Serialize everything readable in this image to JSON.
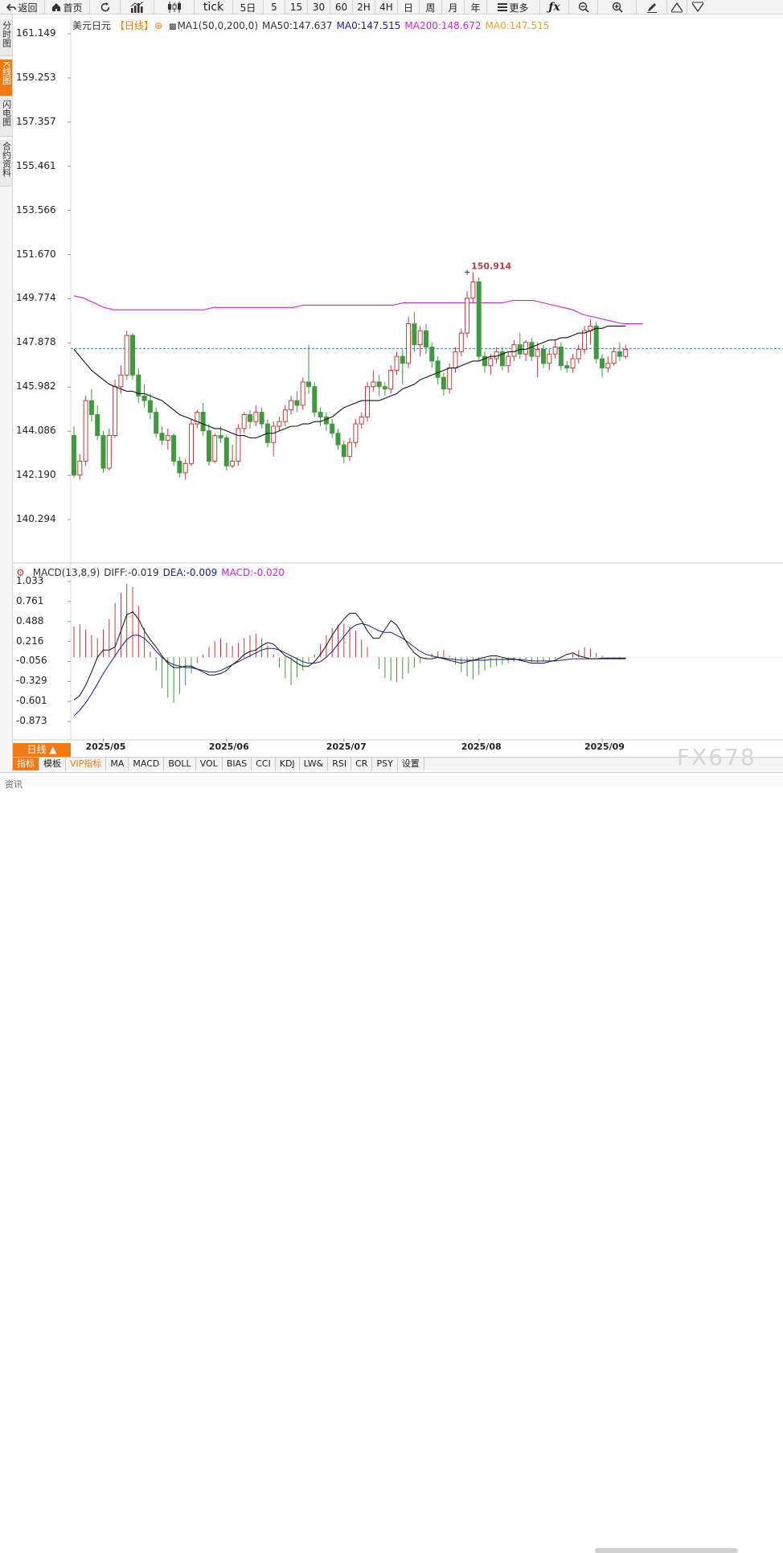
{
  "toolbar": {
    "back": "返回",
    "home": "首页",
    "tick": "tick",
    "periods": [
      "5日",
      "5",
      "15",
      "30",
      "60",
      "2H",
      "4H",
      "日",
      "周",
      "月",
      "年"
    ],
    "more": "更多"
  },
  "left_tabs": [
    {
      "label": "分时图",
      "active": false
    },
    {
      "label": "K线图",
      "active": true
    },
    {
      "label": "闪电图",
      "active": false
    },
    {
      "label": "合约资料",
      "active": false
    }
  ],
  "legend_main": {
    "symbol": "美元日元",
    "period": "【日线】",
    "indicator": "MA1(50,0,200,0)",
    "ma50": "MA50:147.637",
    "ma0a": "MA0:147.515",
    "ma200": "MA200:148.672",
    "ma0b": "MA0:147.515"
  },
  "legend_macd": {
    "name": "MACD(13,8,9)",
    "diff": "DIFF:-0.019",
    "dea": "DEA:-0.009",
    "macd": "MACD:-0.020"
  },
  "colors": {
    "up": "#c23b3b",
    "down": "#3f9a3f",
    "ma200": "#d622d6",
    "ma50": "#111111",
    "current": "#2a7fbf",
    "accent": "#f07a16",
    "dea": "#1a1a8a"
  },
  "chart_data": {
    "type": "candlestick",
    "y_ticks": [
      "161.149",
      "159.253",
      "157.357",
      "155.461",
      "153.566",
      "151.670",
      "149.774",
      "147.878",
      "145.982",
      "144.086",
      "142.190",
      "140.294"
    ],
    "ylim": [
      140.294,
      161.149
    ],
    "macd_ticks": [
      "1.033",
      "0.761",
      "0.488",
      "0.216",
      "-0.056",
      "-0.329",
      "-0.601",
      "-0.873"
    ],
    "macd_ylim": [
      -0.873,
      1.033
    ],
    "x_labels": [
      {
        "label": "2025/05",
        "index": 5
      },
      {
        "label": "2025/06",
        "index": 26
      },
      {
        "label": "2025/07",
        "index": 46
      },
      {
        "label": "2025/08",
        "index": 69
      },
      {
        "label": "2025/09",
        "index": 90
      }
    ],
    "high_marker": {
      "label": "150.914",
      "value": 150.914,
      "index": 67
    },
    "current_price": 147.637,
    "candles": [
      [
        143.9,
        142.2,
        144.3,
        142.1
      ],
      [
        142.2,
        142.8,
        143.1,
        142.0
      ],
      [
        142.8,
        145.4,
        145.6,
        142.6
      ],
      [
        145.4,
        144.8,
        145.9,
        144.5
      ],
      [
        144.8,
        143.9,
        145.2,
        143.7
      ],
      [
        143.9,
        142.5,
        144.1,
        142.3
      ],
      [
        142.5,
        143.9,
        144.2,
        142.4
      ],
      [
        143.9,
        146.0,
        146.3,
        143.8
      ],
      [
        146.0,
        146.5,
        146.9,
        145.7
      ],
      [
        146.5,
        148.2,
        148.4,
        146.3
      ],
      [
        148.2,
        146.5,
        148.3,
        146.3
      ],
      [
        146.5,
        145.6,
        146.8,
        145.3
      ],
      [
        145.6,
        145.4,
        146.1,
        145.1
      ],
      [
        145.4,
        144.9,
        145.7,
        144.6
      ],
      [
        144.9,
        144.0,
        145.1,
        143.8
      ],
      [
        144.0,
        143.7,
        144.3,
        143.5
      ],
      [
        143.7,
        143.9,
        144.2,
        143.3
      ],
      [
        143.9,
        142.8,
        144.0,
        142.6
      ],
      [
        142.8,
        142.3,
        143.0,
        142.1
      ],
      [
        142.3,
        142.7,
        142.9,
        142.0
      ],
      [
        142.7,
        144.4,
        144.6,
        142.6
      ],
      [
        144.4,
        144.9,
        145.0,
        144.2
      ],
      [
        144.9,
        144.1,
        145.3,
        143.9
      ],
      [
        144.1,
        142.8,
        144.4,
        142.6
      ],
      [
        142.8,
        143.9,
        144.0,
        142.7
      ],
      [
        143.9,
        143.8,
        144.3,
        143.6
      ],
      [
        143.8,
        142.6,
        143.9,
        142.4
      ],
      [
        142.6,
        142.8,
        143.5,
        142.5
      ],
      [
        142.8,
        144.2,
        144.4,
        142.6
      ],
      [
        144.2,
        144.8,
        144.9,
        144.0
      ],
      [
        144.8,
        144.5,
        145.0,
        144.2
      ],
      [
        144.5,
        144.9,
        145.2,
        144.3
      ],
      [
        144.9,
        144.4,
        145.1,
        144.2
      ],
      [
        144.4,
        143.6,
        144.6,
        143.4
      ],
      [
        143.6,
        144.3,
        144.5,
        143.0
      ],
      [
        144.3,
        144.5,
        144.7,
        144.1
      ],
      [
        144.5,
        145.0,
        145.2,
        144.3
      ],
      [
        145.0,
        145.4,
        145.6,
        144.8
      ],
      [
        145.4,
        145.2,
        145.8,
        144.9
      ],
      [
        145.2,
        146.2,
        146.4,
        145.0
      ],
      [
        146.2,
        146.0,
        147.8,
        145.7
      ],
      [
        146.0,
        144.9,
        146.2,
        144.7
      ],
      [
        144.9,
        144.7,
        145.1,
        144.3
      ],
      [
        144.7,
        144.4,
        144.9,
        144.1
      ],
      [
        144.4,
        144.0,
        144.6,
        143.8
      ],
      [
        144.0,
        143.5,
        144.2,
        143.3
      ],
      [
        143.5,
        143.0,
        143.7,
        142.7
      ],
      [
        143.0,
        143.6,
        143.8,
        142.8
      ],
      [
        143.6,
        144.4,
        144.6,
        143.4
      ],
      [
        144.4,
        144.7,
        144.9,
        144.2
      ],
      [
        144.7,
        146.0,
        146.2,
        144.5
      ],
      [
        146.0,
        146.2,
        146.7,
        145.8
      ],
      [
        146.2,
        146.0,
        146.5,
        145.6
      ],
      [
        146.0,
        145.9,
        146.2,
        145.6
      ],
      [
        145.9,
        146.7,
        146.9,
        145.7
      ],
      [
        146.7,
        147.3,
        147.5,
        146.5
      ],
      [
        147.3,
        147.0,
        147.6,
        146.1
      ],
      [
        147.0,
        148.7,
        149.0,
        146.8
      ],
      [
        148.7,
        147.8,
        149.2,
        147.5
      ],
      [
        147.8,
        148.4,
        148.6,
        147.3
      ],
      [
        148.4,
        147.7,
        148.7,
        147.4
      ],
      [
        147.7,
        147.1,
        147.9,
        146.8
      ],
      [
        147.1,
        146.4,
        147.3,
        146.1
      ],
      [
        146.4,
        145.9,
        146.6,
        145.6
      ],
      [
        145.9,
        146.8,
        147.0,
        145.7
      ],
      [
        146.8,
        147.5,
        147.7,
        146.6
      ],
      [
        147.5,
        148.3,
        148.5,
        147.3
      ],
      [
        148.3,
        149.8,
        150.1,
        148.1
      ],
      [
        149.8,
        150.5,
        150.9,
        149.6
      ],
      [
        150.5,
        147.3,
        150.7,
        147.1
      ],
      [
        147.3,
        146.9,
        147.5,
        146.6
      ],
      [
        146.9,
        147.2,
        147.4,
        146.5
      ],
      [
        147.2,
        147.5,
        147.7,
        147.0
      ],
      [
        147.5,
        146.9,
        147.7,
        146.7
      ],
      [
        146.9,
        147.3,
        147.5,
        146.6
      ],
      [
        147.3,
        147.8,
        148.0,
        147.1
      ],
      [
        147.8,
        147.4,
        148.3,
        147.2
      ],
      [
        147.4,
        147.9,
        148.0,
        147.1
      ],
      [
        147.9,
        147.3,
        148.1,
        147.1
      ],
      [
        147.3,
        147.6,
        147.9,
        146.4
      ],
      [
        147.6,
        147.0,
        147.8,
        146.8
      ],
      [
        147.0,
        147.4,
        147.6,
        146.7
      ],
      [
        147.4,
        147.7,
        148.0,
        147.2
      ],
      [
        147.7,
        146.9,
        147.9,
        146.7
      ],
      [
        146.9,
        146.8,
        147.1,
        146.6
      ],
      [
        146.8,
        147.2,
        147.4,
        146.6
      ],
      [
        147.2,
        147.6,
        147.8,
        147.0
      ],
      [
        147.6,
        148.4,
        148.6,
        147.4
      ],
      [
        148.4,
        148.6,
        148.9,
        147.8
      ],
      [
        148.6,
        147.2,
        148.8,
        147.0
      ],
      [
        147.2,
        146.8,
        147.4,
        146.4
      ],
      [
        146.8,
        147.0,
        147.3,
        146.6
      ],
      [
        147.0,
        147.5,
        147.7,
        146.9
      ],
      [
        147.5,
        147.3,
        147.9,
        147.1
      ],
      [
        147.3,
        147.6,
        147.8,
        147.2
      ]
    ],
    "ma200_line": [
      149.9,
      149.8,
      149.6,
      149.4,
      149.3,
      149.3,
      149.3,
      149.3,
      149.3,
      149.3,
      149.3,
      149.3,
      149.3,
      149.3,
      149.4,
      149.4,
      149.4,
      149.4,
      149.4,
      149.4,
      149.4,
      149.4,
      149.4,
      149.5,
      149.5,
      149.5,
      149.5,
      149.5,
      149.5,
      149.5,
      149.5,
      149.5,
      149.5,
      149.6,
      149.6,
      149.6,
      149.6,
      149.6,
      149.6,
      149.6,
      149.6,
      149.6,
      149.6,
      149.6,
      149.7,
      149.7,
      149.7,
      149.6,
      149.5,
      149.4,
      149.3,
      149.1,
      149.0,
      148.9,
      148.8,
      148.7,
      148.7,
      148.7
    ],
    "ma200_start_index": 0,
    "ma200_step": 1.7,
    "ma50_line": [
      147.6,
      147.3,
      147.0,
      146.7,
      146.5,
      146.3,
      146.1,
      146.0,
      145.9,
      145.8,
      145.8,
      145.7,
      145.7,
      145.6,
      145.5,
      145.4,
      145.2,
      145.0,
      144.8,
      144.7,
      144.6,
      144.5,
      144.4,
      144.3,
      144.2,
      144.2,
      144.1,
      144.0,
      143.9,
      143.9,
      143.8,
      143.8,
      143.9,
      144.0,
      144.0,
      144.1,
      144.2,
      144.3,
      144.3,
      144.4,
      144.4,
      144.5,
      144.5,
      144.6,
      144.7,
      144.9,
      145.1,
      145.2,
      145.3,
      145.4,
      145.4,
      145.4,
      145.4,
      145.5,
      145.6,
      145.7,
      145.9,
      146.0,
      146.1,
      146.3,
      146.4,
      146.5,
      146.6,
      146.7,
      146.8,
      146.8,
      146.9,
      147.0,
      147.1,
      147.1,
      147.2,
      147.3,
      147.3,
      147.4,
      147.5,
      147.5,
      147.6,
      147.6,
      147.7,
      147.8,
      147.9,
      148.0,
      148.0,
      148.1,
      148.1,
      148.2,
      148.3,
      148.3,
      148.4,
      148.5,
      148.5,
      148.6,
      148.6,
      148.6,
      148.6
    ],
    "macd_bars": [
      0.42,
      0.45,
      0.38,
      0.3,
      0.26,
      0.38,
      0.52,
      0.74,
      0.88,
      1.0,
      0.96,
      0.7,
      0.4,
      0.08,
      -0.18,
      -0.42,
      -0.55,
      -0.62,
      -0.5,
      -0.38,
      -0.22,
      -0.08,
      0.04,
      0.14,
      0.22,
      0.26,
      0.2,
      0.16,
      0.2,
      0.26,
      0.3,
      0.32,
      0.26,
      0.16,
      0.04,
      -0.14,
      -0.28,
      -0.38,
      -0.28,
      -0.18,
      -0.06,
      0.04,
      0.18,
      0.3,
      0.4,
      0.44,
      0.46,
      0.42,
      0.36,
      0.24,
      0.14,
      0.0,
      -0.16,
      -0.28,
      -0.32,
      -0.34,
      -0.3,
      -0.22,
      -0.14,
      -0.08,
      -0.02,
      0.05,
      0.08,
      0.1,
      0.02,
      -0.1,
      -0.2,
      -0.26,
      -0.3,
      -0.24,
      -0.18,
      -0.14,
      -0.12,
      -0.1,
      -0.08,
      -0.06,
      -0.05,
      -0.04,
      -0.06,
      -0.08,
      -0.06,
      -0.04,
      -0.02,
      -0.01,
      0.0,
      0.05,
      0.1,
      0.14,
      0.12,
      0.06,
      0.02,
      -0.02,
      -0.01,
      -0.02,
      -0.02
    ],
    "macd_diff": [
      -0.58,
      -0.52,
      -0.38,
      -0.2,
      0.0,
      0.1,
      0.1,
      0.14,
      0.36,
      0.58,
      0.62,
      0.52,
      0.36,
      0.24,
      0.14,
      0.02,
      -0.08,
      -0.14,
      -0.14,
      -0.12,
      -0.12,
      -0.16,
      -0.2,
      -0.24,
      -0.24,
      -0.22,
      -0.18,
      -0.1,
      -0.04,
      0.04,
      0.08,
      0.1,
      0.16,
      0.2,
      0.18,
      0.1,
      0.02,
      -0.02,
      -0.08,
      -0.12,
      -0.12,
      -0.06,
      0.04,
      0.16,
      0.3,
      0.42,
      0.52,
      0.6,
      0.6,
      0.5,
      0.36,
      0.26,
      0.26,
      0.38,
      0.5,
      0.44,
      0.3,
      0.16,
      0.06,
      0.0,
      -0.02,
      -0.02,
      0.0,
      -0.02,
      -0.04,
      -0.06,
      -0.08,
      -0.06,
      -0.04,
      -0.02,
      0.0,
      0.02,
      0.02,
      0.0,
      -0.02,
      -0.02,
      -0.04,
      -0.06,
      -0.08,
      -0.08,
      -0.08,
      -0.06,
      -0.04,
      0.0,
      0.04,
      0.06,
      0.02,
      0.0,
      -0.02,
      -0.02,
      -0.02,
      -0.02,
      -0.02,
      -0.02,
      -0.02
    ],
    "macd_dea": [
      -0.8,
      -0.72,
      -0.62,
      -0.5,
      -0.36,
      -0.22,
      -0.1,
      0.02,
      0.14,
      0.24,
      0.3,
      0.3,
      0.26,
      0.18,
      0.08,
      0.0,
      -0.06,
      -0.1,
      -0.12,
      -0.14,
      -0.14,
      -0.16,
      -0.18,
      -0.2,
      -0.2,
      -0.18,
      -0.14,
      -0.1,
      -0.06,
      -0.02,
      0.02,
      0.06,
      0.1,
      0.12,
      0.12,
      0.1,
      0.06,
      0.02,
      -0.02,
      -0.06,
      -0.08,
      -0.08,
      -0.06,
      0.0,
      0.08,
      0.18,
      0.28,
      0.38,
      0.44,
      0.46,
      0.44,
      0.4,
      0.36,
      0.34,
      0.34,
      0.3,
      0.26,
      0.2,
      0.14,
      0.08,
      0.04,
      0.02,
      0.0,
      -0.01,
      -0.02,
      -0.03,
      -0.04,
      -0.04,
      -0.04,
      -0.04,
      -0.04,
      -0.03,
      -0.03,
      -0.03,
      -0.03,
      -0.03,
      -0.03,
      -0.04,
      -0.05,
      -0.05,
      -0.05,
      -0.05,
      -0.05,
      -0.04,
      -0.03,
      -0.02,
      -0.02,
      -0.02,
      -0.02,
      -0.02,
      -0.01,
      -0.01,
      -0.01,
      -0.01,
      -0.01
    ]
  },
  "period_box": "日线 ▲",
  "bottom_tabs": [
    "指标",
    "模板",
    "VIP指标",
    "MA",
    "MACD",
    "BOLL",
    "VOL",
    "BIAS",
    "CCI",
    "KDJ",
    "LW&",
    "RSI",
    "CR",
    "PSY",
    "设置"
  ],
  "watermark": "FX678",
  "footer": {
    "label": "资讯"
  }
}
